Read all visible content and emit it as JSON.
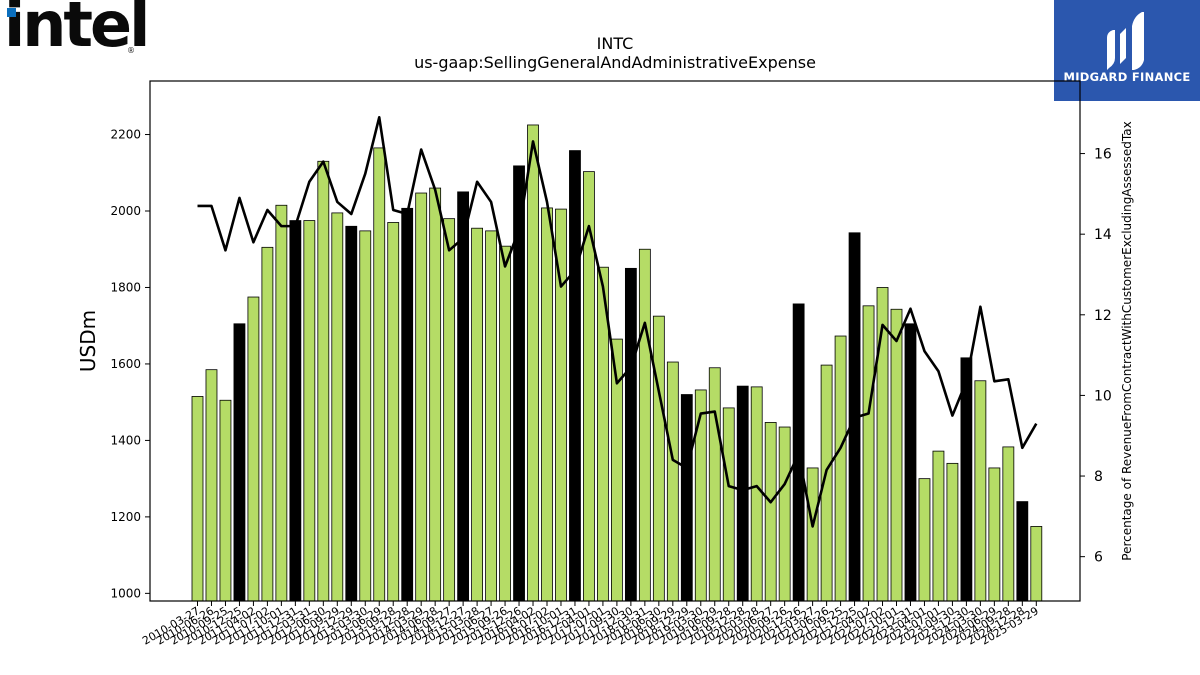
{
  "header": {
    "intel_logo_text": "intel",
    "intel_logo_mark": "®",
    "midgard_logo_text": "MIDGARD FINANCE"
  },
  "colors": {
    "bar_green": "#b5dc66",
    "bar_black": "#000000",
    "line": "#000000",
    "midgard_bg": "#2b57ae",
    "intel_dot": "#0a6ebd"
  },
  "chart_data": {
    "type": "bar",
    "title": "INTC",
    "subtitle": "us-gaap:SellingGeneralAndAdministrativeExpense",
    "ylabel": "USDm",
    "y2label": "Percentage of RevenueFromContractWithCustomerExcludingAssessedTax",
    "ylim": [
      980,
      2340
    ],
    "y2lim": [
      4.9,
      17.8
    ],
    "yticks": [
      1000,
      1200,
      1400,
      1600,
      1800,
      2000,
      2200
    ],
    "y2ticks": [
      6,
      8,
      10,
      12,
      14,
      16
    ],
    "grid": false,
    "x_tick_labels": [
      "2010-03-27",
      "2010-06-26",
      "2010-09-25",
      "2010-12-25",
      "2011-04-02",
      "2011-07-02",
      "2011-10-01",
      "2011-12-31",
      "2012-03-31",
      "2012-06-30",
      "2012-09-29",
      "2012-12-29",
      "2013-03-30",
      "2013-06-29",
      "2013-09-28",
      "2013-12-28",
      "2014-03-29",
      "2014-06-28",
      "2014-09-27",
      "2014-12-27",
      "2015-03-28",
      "2015-06-27",
      "2015-09-26",
      "2015-12-26",
      "2016-04-02",
      "2016-07-02",
      "2016-10-01",
      "2016-12-31",
      "2017-04-01",
      "2017-07-01",
      "2017-09-30",
      "2017-12-30",
      "2018-03-31",
      "2018-06-30",
      "2018-09-29",
      "2018-12-29",
      "2019-03-30",
      "2019-06-29",
      "2019-09-28",
      "2019-12-28",
      "2020-03-28",
      "2020-06-27",
      "2020-09-26",
      "2020-12-26",
      "2021-03-27",
      "2021-06-26",
      "2021-09-25",
      "2021-12-25",
      "2022-04-02",
      "2022-07-02",
      "2022-10-01",
      "2022-12-31",
      "2023-04-01",
      "2023-07-01",
      "2023-09-30",
      "2023-12-30",
      "2024-03-30",
      "2024-06-29",
      "2024-09-28",
      "2024-12-28",
      "2025-03-29"
    ],
    "categories": [
      "2010-03-27",
      "2010-06-26",
      "2010-09-25",
      "2010-12-25",
      "2011-04-02",
      "2011-07-02",
      "2011-10-01",
      "2011-12-31",
      "2012-03-31",
      "2012-06-30",
      "2012-09-29",
      "2012-12-29",
      "2013-03-30",
      "2013-06-29",
      "2013-09-28",
      "2013-12-28",
      "2014-03-29",
      "2014-06-28",
      "2014-09-27",
      "2014-12-27",
      "2015-03-28",
      "2015-06-27",
      "2015-09-26",
      "2015-12-26",
      "2016-04-02",
      "2016-07-02",
      "2016-10-01",
      "2016-12-31",
      "2017-04-01",
      "2017-07-01",
      "2017-09-30",
      "2017-12-30",
      "2018-03-31",
      "2018-06-30",
      "2018-09-29",
      "2018-12-29",
      "2019-03-30",
      "2019-06-29",
      "2019-09-28",
      "2019-12-28",
      "2020-03-28",
      "2020-06-27",
      "2020-09-26",
      "2020-12-26",
      "2021-03-27",
      "2021-06-26",
      "2021-09-25",
      "2021-12-25",
      "2022-04-02",
      "2022-07-02",
      "2022-10-01",
      "2022-12-31",
      "2023-04-01",
      "2023-07-01",
      "2023-09-30",
      "2023-12-30",
      "2024-03-30",
      "2024-06-29",
      "2024-09-28",
      "2024-12-28",
      "2025-03-29"
    ],
    "series": [
      {
        "kind": "bar",
        "axis": "left",
        "values": [
          1515,
          1585,
          1505,
          1705,
          1775,
          1905,
          2015,
          1975,
          1975,
          2130,
          1995,
          1960,
          1948,
          2165,
          1970,
          2007,
          2047,
          2060,
          1980,
          2050,
          1955,
          1948,
          1908,
          2118,
          2225,
          2008,
          2005,
          2158,
          2103,
          1853,
          1665,
          1850,
          1900,
          1725,
          1605,
          1520,
          1532,
          1590,
          1485,
          1542,
          1540,
          1447,
          1435,
          1757,
          1328,
          1597,
          1673,
          1943,
          1752,
          1800,
          1743,
          1705,
          1300,
          1372,
          1340,
          1616,
          1556,
          1328,
          1383,
          1240,
          1175
        ],
        "highlight": [
          false,
          false,
          false,
          true,
          false,
          false,
          false,
          true,
          false,
          false,
          false,
          true,
          false,
          false,
          false,
          true,
          false,
          false,
          false,
          true,
          false,
          false,
          false,
          true,
          false,
          false,
          false,
          true,
          false,
          false,
          false,
          true,
          false,
          false,
          false,
          true,
          false,
          false,
          false,
          true,
          false,
          false,
          false,
          true,
          false,
          false,
          false,
          true,
          false,
          false,
          false,
          true,
          false,
          false,
          false,
          true,
          false,
          false,
          false,
          true,
          false
        ]
      },
      {
        "kind": "line",
        "axis": "right",
        "values": [
          14.7,
          14.7,
          13.6,
          14.9,
          13.8,
          14.6,
          14.2,
          14.2,
          15.3,
          15.8,
          14.8,
          14.5,
          15.5,
          16.9,
          14.6,
          14.5,
          16.1,
          15.1,
          13.6,
          13.9,
          15.3,
          14.8,
          13.2,
          14.1,
          16.3,
          14.8,
          12.7,
          13.1,
          14.2,
          12.7,
          10.3,
          10.7,
          11.8,
          10.1,
          8.4,
          8.2,
          9.55,
          9.6,
          7.75,
          7.65,
          7.75,
          7.35,
          7.8,
          8.55,
          6.75,
          8.15,
          8.7,
          9.45,
          9.55,
          11.75,
          11.35,
          12.15,
          11.1,
          10.6,
          9.5,
          10.35,
          12.2,
          10.35,
          10.4,
          8.7,
          9.3
        ]
      }
    ]
  }
}
